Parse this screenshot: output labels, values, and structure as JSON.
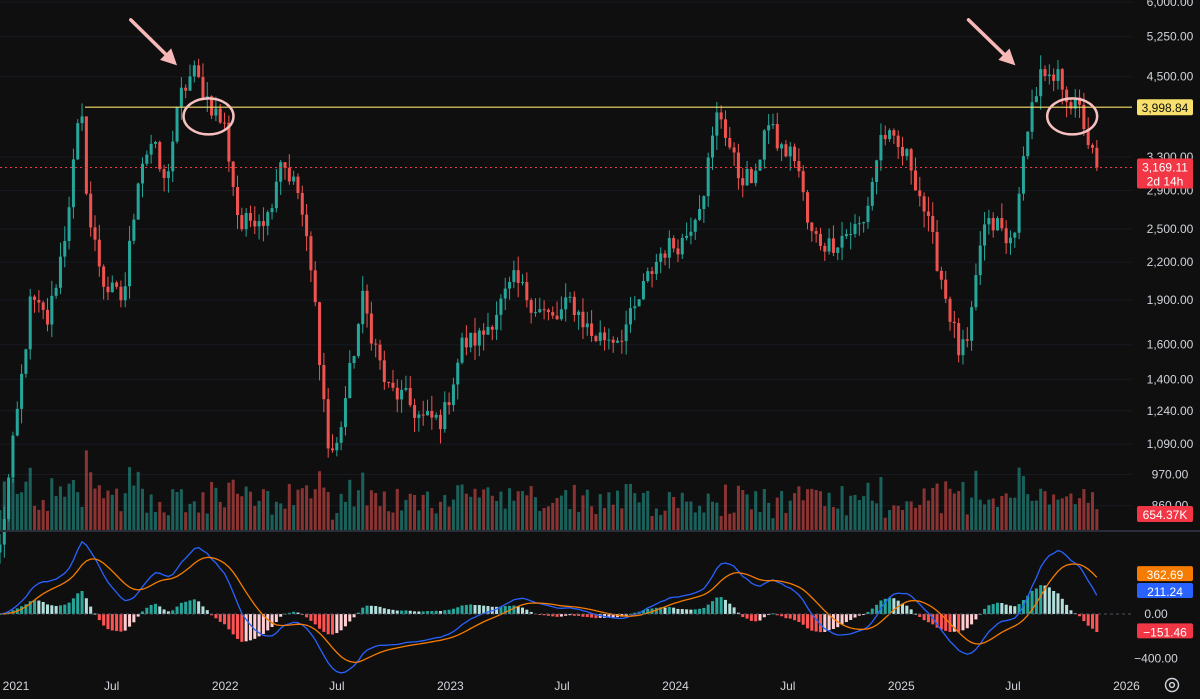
{
  "chart_data": {
    "type": "candlestick",
    "price_axis": {
      "scale": "log",
      "range": [
        780,
        6000
      ],
      "ticks": [
        "6,000.00",
        "5,250.00",
        "4,500.00",
        "3,300.00",
        "2,900.00",
        "2,500.00",
        "2,200.00",
        "1,900.00",
        "1,600.00",
        "1,400.00",
        "1,240.00",
        "1,090.00",
        "970.00",
        "860.00"
      ]
    },
    "time_axis": {
      "range": [
        "2021-01-01",
        "2026-01-10"
      ],
      "ticks": [
        {
          "label": "2021",
          "date": "2021-01-01"
        },
        {
          "label": "Jul",
          "date": "2021-07-01"
        },
        {
          "label": "2022",
          "date": "2022-01-01"
        },
        {
          "label": "Jul",
          "date": "2022-07-01"
        },
        {
          "label": "2023",
          "date": "2023-01-01"
        },
        {
          "label": "Jul",
          "date": "2023-07-01"
        },
        {
          "label": "2024",
          "date": "2024-01-01"
        },
        {
          "label": "Jul",
          "date": "2024-07-01"
        },
        {
          "label": "2025",
          "date": "2025-01-01"
        },
        {
          "label": "Jul",
          "date": "2025-07-01"
        },
        {
          "label": "2026",
          "date": "2026-01-01"
        }
      ]
    },
    "horizontal_line": {
      "value": 3998.84,
      "label": "3,998.84",
      "color": "#f7e06b"
    },
    "last_price": {
      "value": 3169.11,
      "label": "3,169.11",
      "countdown": "2d 14h",
      "color": "#f23645"
    },
    "volume_label": "654.37K",
    "price_path": [
      [
        "2021-01-01",
        730
      ],
      [
        "2021-02-01",
        1300
      ],
      [
        "2021-02-20",
        1900
      ],
      [
        "2021-03-20",
        1750
      ],
      [
        "2021-04-15",
        2400
      ],
      [
        "2021-05-12",
        4000
      ],
      [
        "2021-05-25",
        2600
      ],
      [
        "2021-06-20",
        2000
      ],
      [
        "2021-07-20",
        1900
      ],
      [
        "2021-08-15",
        3200
      ],
      [
        "2021-09-05",
        3500
      ],
      [
        "2021-09-25",
        2950
      ],
      [
        "2021-10-20",
        4150
      ],
      [
        "2021-11-10",
        4600
      ],
      [
        "2021-12-05",
        4100
      ],
      [
        "2021-12-31",
        3700
      ],
      [
        "2022-01-25",
        2500
      ],
      [
        "2022-02-20",
        2650
      ],
      [
        "2022-03-10",
        2600
      ],
      [
        "2022-04-01",
        3300
      ],
      [
        "2022-05-01",
        2850
      ],
      [
        "2022-05-25",
        1950
      ],
      [
        "2022-06-18",
        1050
      ],
      [
        "2022-07-01",
        1080
      ],
      [
        "2022-08-12",
        1900
      ],
      [
        "2022-09-20",
        1350
      ],
      [
        "2022-10-20",
        1300
      ],
      [
        "2022-11-15",
        1200
      ],
      [
        "2022-12-20",
        1200
      ],
      [
        "2023-01-20",
        1600
      ],
      [
        "2023-02-20",
        1650
      ],
      [
        "2023-04-15",
        2050
      ],
      [
        "2023-05-20",
        1850
      ],
      [
        "2023-06-20",
        1750
      ],
      [
        "2023-07-15",
        1900
      ],
      [
        "2023-08-20",
        1650
      ],
      [
        "2023-10-01",
        1650
      ],
      [
        "2023-10-25",
        1800
      ],
      [
        "2023-11-15",
        2050
      ],
      [
        "2023-12-10",
        2300
      ],
      [
        "2024-01-15",
        2400
      ],
      [
        "2024-02-15",
        2900
      ],
      [
        "2024-03-11",
        4000
      ],
      [
        "2024-04-10",
        3100
      ],
      [
        "2024-05-10",
        3000
      ],
      [
        "2024-05-25",
        3800
      ],
      [
        "2024-06-20",
        3400
      ],
      [
        "2024-07-15",
        3300
      ],
      [
        "2024-08-05",
        2450
      ],
      [
        "2024-09-05",
        2350
      ],
      [
        "2024-10-01",
        2450
      ],
      [
        "2024-11-01",
        2550
      ],
      [
        "2024-12-01",
        3650
      ],
      [
        "2024-12-20",
        3450
      ],
      [
        "2025-01-15",
        3250
      ],
      [
        "2025-02-05",
        2750
      ],
      [
        "2025-03-01",
        2200
      ],
      [
        "2025-04-05",
        1550
      ],
      [
        "2025-04-20",
        1600
      ],
      [
        "2025-05-12",
        2500
      ],
      [
        "2025-06-10",
        2550
      ],
      [
        "2025-06-22",
        2300
      ],
      [
        "2025-07-10",
        2700
      ],
      [
        "2025-07-25",
        3800
      ],
      [
        "2025-08-15",
        4500
      ],
      [
        "2025-08-28",
        4350
      ],
      [
        "2025-09-15",
        4500
      ],
      [
        "2025-10-01",
        4100
      ],
      [
        "2025-10-20",
        3900
      ],
      [
        "2025-11-05",
        3350
      ],
      [
        "2025-11-15",
        3169.11
      ]
    ],
    "macd": {
      "range": [
        -520,
        700
      ],
      "ticks": [
        "0.00",
        "−400.00"
      ],
      "fast_label": "362.69",
      "fast_color": "#f57c00",
      "slow_label": "211.24",
      "slow_color": "#2962ff",
      "hist_label": "−151.46",
      "hist_color": "#f23645"
    },
    "annotations": [
      {
        "type": "arrow",
        "color": "#f7b8b8",
        "from": [
          "2021-08-01",
          5600
        ],
        "to": [
          "2021-10-15",
          4700
        ]
      },
      {
        "type": "arrow",
        "color": "#f7b8b8",
        "from": [
          "2025-04-20",
          5600
        ],
        "to": [
          "2025-07-05",
          4700
        ]
      },
      {
        "type": "circle",
        "color": "#f7c0c0",
        "center": [
          "2021-12-05",
          3860
        ]
      },
      {
        "type": "circle",
        "color": "#f7c0c0",
        "center": [
          "2025-10-05",
          3860
        ]
      }
    ],
    "up_color": "#26a69a",
    "down_color": "#ef5350"
  }
}
